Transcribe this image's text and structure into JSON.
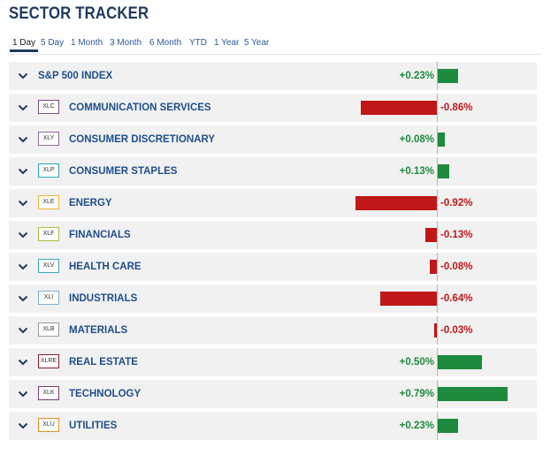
{
  "title": "SECTOR TRACKER",
  "tabs": [
    "1 Day",
    "5 Day",
    "1 Month",
    "3 Month",
    "6 Month",
    "YTD",
    "1 Year",
    "5 Year"
  ],
  "active_tab": "1 Day",
  "colors": {
    "positive": "#1e8a3e",
    "negative": "#c01818",
    "label": "#1e4f8a",
    "title": "#1e3a5f"
  },
  "scale_max_pct": 0.86,
  "rows": [
    {
      "ticker": null,
      "ticker_color": null,
      "name": "S&P 500 INDEX",
      "value": 0.23,
      "label": "+0.23%"
    },
    {
      "ticker": "XLC",
      "ticker_color": "#7b4d8e",
      "name": "COMMUNICATION SERVICES",
      "value": -0.86,
      "label": "-0.86%"
    },
    {
      "ticker": "XLY",
      "ticker_color": "#8a6a9a",
      "name": "CONSUMER DISCRETIONARY",
      "value": 0.08,
      "label": "+0.08%"
    },
    {
      "ticker": "XLP",
      "ticker_color": "#2aa6b8",
      "name": "CONSUMER STAPLES",
      "value": 0.13,
      "label": "+0.13%"
    },
    {
      "ticker": "XLE",
      "ticker_color": "#f0b030",
      "name": "ENERGY",
      "value": -0.92,
      "label": "-0.92%"
    },
    {
      "ticker": "XLF",
      "ticker_color": "#a8c040",
      "name": "FINANCIALS",
      "value": -0.13,
      "label": "-0.13%"
    },
    {
      "ticker": "XLV",
      "ticker_color": "#3aa8b8",
      "name": "HEALTH CARE",
      "value": -0.08,
      "label": "-0.08%"
    },
    {
      "ticker": "XLI",
      "ticker_color": "#7ab0d8",
      "name": "INDUSTRIALS",
      "value": -0.64,
      "label": "-0.64%"
    },
    {
      "ticker": "XLB",
      "ticker_color": "#9a9aa8",
      "name": "MATERIALS",
      "value": -0.03,
      "label": "-0.03%"
    },
    {
      "ticker": "XLRE",
      "ticker_color": "#8a1a2a",
      "name": "REAL ESTATE",
      "value": 0.5,
      "label": "+0.50%"
    },
    {
      "ticker": "XLK",
      "ticker_color": "#7a3a7a",
      "name": "TECHNOLOGY",
      "value": 0.79,
      "label": "+0.79%"
    },
    {
      "ticker": "XLU",
      "ticker_color": "#e89020",
      "name": "UTILITIES",
      "value": 0.23,
      "label": "+0.23%"
    }
  ]
}
